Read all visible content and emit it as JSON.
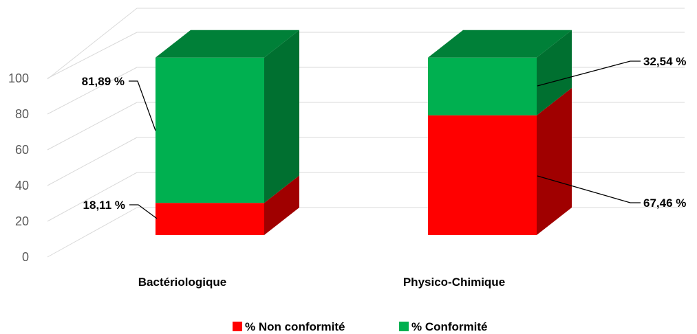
{
  "chart_data": {
    "type": "bar",
    "stacked": true,
    "three_d": true,
    "categories": [
      "Bactériologique",
      "Physico-Chimique"
    ],
    "series": [
      {
        "name": "% Non conformité",
        "values": [
          18.11,
          67.46
        ],
        "color": "#ff0000",
        "side_color": "#a00000"
      },
      {
        "name": "% Conformité",
        "values": [
          81.89,
          32.54
        ],
        "color": "#00b050",
        "side_color": "#007030",
        "top_color": "#008038"
      }
    ],
    "data_labels": [
      [
        "18,11 %",
        "67,46 %"
      ],
      [
        "81,89 %",
        "32,54 %"
      ]
    ],
    "yticks": [
      "0",
      "20",
      "40",
      "60",
      "80",
      "100"
    ],
    "ylim": [
      0,
      100
    ],
    "grid": true,
    "legend_position": "bottom"
  }
}
